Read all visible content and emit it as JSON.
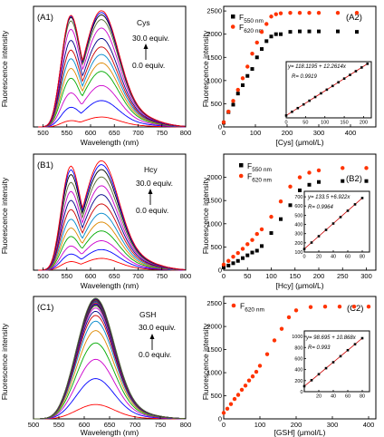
{
  "chart_data": [
    {
      "type": "line",
      "label": "(A1)",
      "xlabel": "Wavelength (nm)",
      "ylabel": "Fluorescence intensity",
      "xlim": [
        480,
        800
      ],
      "ylim": [
        0,
        2600
      ],
      "xticks": [
        500,
        550,
        600,
        650,
        700,
        750,
        800
      ],
      "y_ticks_shown": false,
      "annotations": {
        "analyte": "Cys",
        "top_label": "30.0 equiv.",
        "bottom_label": "0.0 equiv."
      },
      "colors": [
        "#ff0000",
        "#0000ff",
        "#cc00cc",
        "#00aa00",
        "#dd8800",
        "#0088cc",
        "#cc0000",
        "#000088",
        "#cc00cc",
        "#556b2f",
        "#000000",
        "#0000ff",
        "#ff0000"
      ],
      "peak_values": [
        210,
        560,
        880,
        1180,
        1360,
        1540,
        1700,
        1880,
        2100,
        2280,
        2380,
        2430,
        2470
      ],
      "shoulder_ratio": [
        0.6,
        0.72,
        0.8,
        0.86,
        0.9,
        0.93,
        0.95,
        0.97,
        0.98,
        0.98,
        0.97,
        0.96,
        0.95
      ]
    },
    {
      "type": "scatter",
      "label": "(A2)",
      "xlabel": "[Cys] (μmol/L)",
      "ylabel": "Fluorescence intensity",
      "xlim": [
        0,
        480
      ],
      "ylim": [
        0,
        2600
      ],
      "xticks": [
        0,
        100,
        200,
        300,
        400
      ],
      "yticks": [
        0,
        500,
        1000,
        1500,
        2000,
        2500
      ],
      "series": [
        {
          "name": "F550 nm",
          "name_main": "F",
          "name_sub": "550 nm",
          "color": "#000000",
          "marker": "square",
          "x": [
            0,
            15,
            30,
            45,
            60,
            75,
            90,
            105,
            120,
            135,
            150,
            165,
            180,
            210,
            240,
            270,
            300,
            360,
            420
          ],
          "y": [
            90,
            320,
            480,
            720,
            900,
            1100,
            1250,
            1500,
            1680,
            1850,
            1950,
            2000,
            2000,
            2050,
            2060,
            2060,
            2060,
            2060,
            2050
          ]
        },
        {
          "name": "F620 nm",
          "name_main": "F",
          "name_sub": "620 nm",
          "color": "#ff3300",
          "marker": "circle",
          "x": [
            0,
            15,
            30,
            45,
            60,
            75,
            90,
            105,
            120,
            135,
            150,
            165,
            180,
            210,
            240,
            270,
            300,
            360,
            420
          ],
          "y": [
            100,
            330,
            560,
            800,
            1050,
            1300,
            1580,
            1820,
            2050,
            2220,
            2380,
            2430,
            2450,
            2460,
            2460,
            2460,
            2460,
            2460,
            2460
          ]
        }
      ],
      "inset": {
        "equation": "y= 118.1195 + 12.2614x",
        "r_text": "R= 0.9919",
        "xlim": [
          0,
          220
        ],
        "ylim": [
          0,
          2800
        ],
        "xticks": [
          0,
          50,
          100,
          150,
          200
        ],
        "x": [
          0,
          15,
          30,
          45,
          60,
          75,
          90,
          105,
          120,
          135,
          150,
          165,
          180,
          195,
          210
        ],
        "y": [
          118,
          302,
          486,
          670,
          854,
          1038,
          1222,
          1405,
          1589,
          1773,
          1957,
          2141,
          2325,
          2509,
          2693
        ]
      }
    },
    {
      "type": "line",
      "label": "(B1)",
      "xlabel": "Wavelength (nm)",
      "ylabel": "Fluorescence intensity",
      "xlim": [
        480,
        800
      ],
      "ylim": [
        0,
        2400
      ],
      "xticks": [
        500,
        550,
        600,
        650,
        700,
        750,
        800
      ],
      "y_ticks_shown": false,
      "annotations": {
        "analyte": "Hcy",
        "top_label": "30.0 equiv.",
        "bottom_label": "0.0 equiv."
      },
      "colors": [
        "#ff0000",
        "#0000ff",
        "#cc00cc",
        "#00aa00",
        "#dd8800",
        "#0088cc",
        "#cc0000",
        "#000088",
        "#cc00cc",
        "#556b2f",
        "#000000",
        "#0000ff",
        "#ff0000"
      ],
      "peak_values": [
        240,
        420,
        600,
        800,
        980,
        1160,
        1350,
        1540,
        1720,
        1900,
        2050,
        2150,
        2230
      ],
      "shoulder_ratio": [
        0.7,
        0.76,
        0.8,
        0.84,
        0.86,
        0.88,
        0.9,
        0.91,
        0.92,
        0.93,
        0.94,
        0.94,
        0.94
      ]
    },
    {
      "type": "scatter",
      "label": "(B2)",
      "xlabel": "[Hcy] (μmol/L)",
      "ylabel": "Fluorescence intensity",
      "xlim": [
        0,
        320
      ],
      "ylim": [
        0,
        2500
      ],
      "xticks": [
        0,
        50,
        100,
        150,
        200,
        250,
        300
      ],
      "yticks": [
        0,
        500,
        1000,
        1500,
        2000
      ],
      "series": [
        {
          "name": "F550 nm",
          "name_main": "F",
          "name_sub": "550 nm",
          "color": "#000000",
          "marker": "square",
          "x": [
            0,
            10,
            20,
            30,
            40,
            50,
            60,
            70,
            80,
            100,
            120,
            140,
            160,
            180,
            200,
            250,
            300
          ],
          "y": [
            60,
            100,
            150,
            200,
            260,
            320,
            380,
            420,
            520,
            800,
            1100,
            1400,
            1720,
            1840,
            1900,
            1920,
            1920
          ]
        },
        {
          "name": "F620 nm",
          "name_main": "F",
          "name_sub": "620 nm",
          "color": "#ff3300",
          "marker": "circle",
          "x": [
            0,
            10,
            20,
            30,
            40,
            50,
            60,
            70,
            80,
            100,
            120,
            140,
            160,
            180,
            200,
            250,
            300
          ],
          "y": [
            120,
            200,
            290,
            370,
            460,
            560,
            650,
            780,
            880,
            1150,
            1480,
            1800,
            2000,
            2100,
            2150,
            2200,
            2200
          ]
        }
      ],
      "inset": {
        "equation": "y= 133.5 +6.922x",
        "r_text": "R= 0.9964",
        "xlim": [
          0,
          90
        ],
        "ylim": [
          100,
          760
        ],
        "xticks": [
          0,
          20,
          40,
          60,
          80
        ],
        "yticks": [
          100,
          200,
          300,
          400,
          500,
          600,
          700
        ],
        "x": [
          0,
          10,
          20,
          30,
          40,
          50,
          60,
          70,
          80
        ],
        "y": [
          133,
          203,
          272,
          341,
          410,
          480,
          549,
          618,
          687
        ]
      }
    },
    {
      "type": "line",
      "label": "(C1)",
      "xlabel": "Wavelength (nm)",
      "ylabel": "Fluorescence intensity",
      "xlim": [
        500,
        800
      ],
      "ylim": [
        0,
        3000
      ],
      "xticks": [
        500,
        550,
        600,
        650,
        700,
        750,
        800
      ],
      "y_ticks_shown": false,
      "annotations": {
        "analyte": "GSH",
        "top_label": "30.0 equiv.",
        "bottom_label": "0.0 equiv."
      },
      "colors": [
        "#ff0000",
        "#0000ff",
        "#cc00cc",
        "#00aa00",
        "#dd8800",
        "#0088cc",
        "#cc0000",
        "#000088",
        "#cc00cc",
        "#556b2f",
        "#000000",
        "#0000ff",
        "#ff0000",
        "#008080",
        "#4b0082",
        "#2f4f4f",
        "#800000",
        "#00008b",
        "#556b2f"
      ],
      "peak_values": [
        350,
        980,
        1450,
        1850,
        2150,
        2380,
        2520,
        2620,
        2700,
        2750,
        2780,
        2800,
        2820,
        2840,
        2860,
        2880,
        2900,
        2920,
        2940
      ],
      "shoulder_ratio": []
    },
    {
      "type": "scatter",
      "label": "(C2)",
      "xlabel": "[GSH] (μmol/L)",
      "ylabel": "Fluorescence intensity",
      "xlim": [
        0,
        420
      ],
      "ylim": [
        0,
        2650
      ],
      "xticks": [
        0,
        100,
        200,
        300,
        400
      ],
      "yticks": [
        0,
        500,
        1000,
        1500,
        2000,
        2500
      ],
      "series": [
        {
          "name": "F620 nm",
          "name_main": "F",
          "name_sub": "620 nm",
          "color": "#ff3300",
          "marker": "circle",
          "x": [
            0,
            10,
            20,
            30,
            40,
            50,
            60,
            70,
            80,
            90,
            100,
            120,
            140,
            160,
            180,
            200,
            240,
            280,
            320,
            360,
            400
          ],
          "y": [
            130,
            220,
            320,
            430,
            520,
            630,
            720,
            830,
            920,
            1020,
            1150,
            1400,
            1700,
            1950,
            2200,
            2350,
            2420,
            2430,
            2430,
            2430,
            2430
          ]
        }
      ],
      "inset": {
        "equation": "y= 98.695 + 10.868x",
        "r_text": "R= 0.993",
        "xlim": [
          0,
          90
        ],
        "ylim": [
          0,
          1100
        ],
        "xticks": [
          20,
          40,
          60,
          80
        ],
        "yticks": [
          0,
          200,
          400,
          600,
          800,
          1000
        ],
        "x": [
          0,
          10,
          20,
          30,
          40,
          50,
          60,
          70,
          80
        ],
        "y": [
          99,
          207,
          316,
          425,
          533,
          642,
          751,
          859,
          968
        ]
      }
    }
  ]
}
